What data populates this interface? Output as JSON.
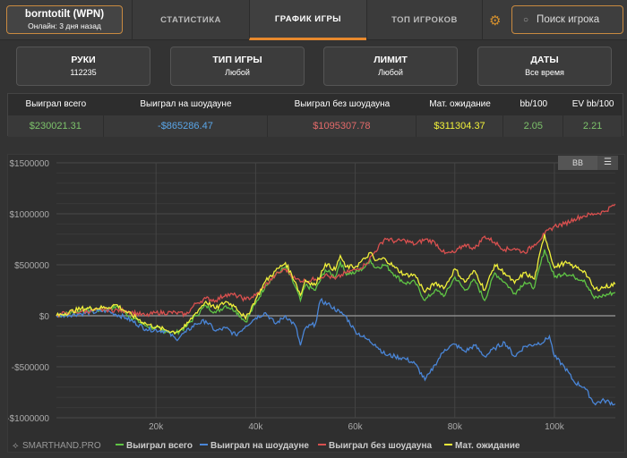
{
  "header": {
    "player_name": "borntotilt (WPN)",
    "player_status": "Онлайн: 3 дня назад",
    "tabs": [
      "СТАТИСТИКА",
      "ГРАФИК ИГРЫ",
      "ТОП ИГРОКОВ"
    ],
    "active_tab": 1,
    "search_placeholder": "Поиск игрока"
  },
  "filters": [
    {
      "label": "РУКИ",
      "value": "112235"
    },
    {
      "label": "ТИП ИГРЫ",
      "value": "Любой"
    },
    {
      "label": "ЛИМИТ",
      "value": "Любой"
    },
    {
      "label": "ДАТЫ",
      "value": "Все время"
    }
  ],
  "stats": {
    "headers": [
      "Выиграл всего",
      "Выиграл на шоудауне",
      "Выиграл без шоудауна",
      "Мат. ожидание",
      "bb/100",
      "EV bb/100"
    ],
    "values": [
      "$230021.31",
      "-$865286.47",
      "$1095307.78",
      "$311304.37",
      "2.05",
      "2.21"
    ],
    "colors": [
      "#7dc36b",
      "#5aa6e8",
      "#e36a6a",
      "#f2f23a",
      "#7dc36b",
      "#7dc36b"
    ]
  },
  "chart_controls": {
    "bb_label": "BB",
    "menu_icon": "hamburger-icon"
  },
  "brand": "SMARTHAND.PRO",
  "chart_data": {
    "type": "line",
    "xlim": [
      0,
      112235
    ],
    "ylim": [
      -1000000,
      1500000
    ],
    "x_ticks": [
      20000,
      40000,
      60000,
      80000,
      100000
    ],
    "x_tick_labels": [
      "20k",
      "40k",
      "60k",
      "80k",
      "100k"
    ],
    "y_ticks": [
      1500000,
      1000000,
      500000,
      0,
      -500000,
      -1000000
    ],
    "y_tick_labels": [
      "$1500000",
      "$1000000",
      "$500000",
      "$0",
      "-$500000",
      "-$1000000"
    ],
    "legend_position": "bottom",
    "series": [
      {
        "name": "Выиграл всего",
        "color": "#5fc444",
        "x_k": [
          0,
          5,
          10,
          12,
          14,
          18,
          22,
          24,
          26,
          28,
          30,
          32,
          34,
          36,
          38,
          40,
          42,
          44,
          46,
          48,
          49,
          50,
          52,
          54,
          56,
          57,
          58,
          60,
          62,
          63,
          64,
          66,
          68,
          70,
          72,
          74,
          76,
          78,
          80,
          82,
          84,
          86,
          88,
          90,
          92,
          94,
          96,
          98,
          100,
          102,
          104,
          106,
          108,
          110,
          112.2
        ],
        "y_k": [
          0,
          50,
          60,
          90,
          20,
          -100,
          -150,
          -170,
          -110,
          0,
          100,
          30,
          100,
          50,
          -60,
          120,
          300,
          400,
          480,
          280,
          150,
          300,
          250,
          450,
          380,
          530,
          420,
          420,
          480,
          550,
          470,
          500,
          400,
          320,
          330,
          150,
          250,
          200,
          380,
          250,
          350,
          150,
          420,
          330,
          220,
          330,
          280,
          650,
          380,
          420,
          380,
          350,
          170,
          200,
          230
        ]
      },
      {
        "name": "Выиграл на шоудауне",
        "color": "#4a86d8",
        "x_k": [
          0,
          5,
          10,
          14,
          18,
          22,
          24,
          26,
          28,
          30,
          32,
          34,
          36,
          38,
          40,
          42,
          44,
          46,
          48,
          49,
          50,
          52,
          53,
          55,
          57,
          58,
          60,
          62,
          64,
          66,
          68,
          70,
          72,
          74,
          75,
          76,
          78,
          80,
          82,
          84,
          86,
          88,
          90,
          92,
          94,
          96,
          98,
          99,
          100,
          102,
          104,
          106,
          108,
          110,
          112.2
        ],
        "y_k": [
          0,
          20,
          50,
          -20,
          -130,
          -150,
          -230,
          -160,
          -80,
          -50,
          -150,
          -120,
          -190,
          -100,
          -20,
          30,
          -80,
          0,
          -100,
          -290,
          -120,
          -80,
          150,
          100,
          30,
          0,
          -150,
          -220,
          -280,
          -380,
          -400,
          -420,
          -470,
          -630,
          -560,
          -480,
          -330,
          -280,
          -350,
          -290,
          -400,
          -320,
          -260,
          -400,
          -300,
          -280,
          -250,
          -200,
          -400,
          -500,
          -650,
          -700,
          -860,
          -830,
          -865
        ]
      },
      {
        "name": "Выиграл без шоудауна",
        "color": "#d9504f",
        "x_k": [
          0,
          2,
          5,
          10,
          14,
          18,
          20,
          24,
          26,
          28,
          30,
          32,
          34,
          36,
          38,
          40,
          44,
          46,
          48,
          50,
          52,
          54,
          56,
          58,
          60,
          62,
          64,
          66,
          68,
          70,
          72,
          74,
          76,
          78,
          80,
          82,
          84,
          86,
          88,
          90,
          92,
          94,
          96,
          98,
          100,
          102,
          104,
          106,
          108,
          110,
          112.2
        ],
        "y_k": [
          0,
          30,
          40,
          60,
          50,
          0,
          30,
          30,
          10,
          120,
          170,
          150,
          210,
          200,
          160,
          200,
          400,
          460,
          360,
          340,
          360,
          400,
          360,
          420,
          450,
          500,
          630,
          760,
          730,
          740,
          700,
          750,
          720,
          610,
          620,
          700,
          660,
          780,
          720,
          650,
          660,
          620,
          700,
          800,
          880,
          900,
          950,
          980,
          1000,
          1020,
          1095
        ]
      },
      {
        "name": "Мат. ожидание",
        "color": "#f0f03a",
        "x_k": [
          0,
          5,
          10,
          12,
          14,
          18,
          22,
          24,
          26,
          28,
          30,
          32,
          34,
          36,
          38,
          40,
          42,
          44,
          46,
          48,
          49,
          50,
          52,
          54,
          56,
          57,
          58,
          60,
          62,
          63,
          64,
          66,
          68,
          70,
          72,
          74,
          76,
          78,
          80,
          82,
          84,
          86,
          88,
          90,
          92,
          94,
          96,
          98,
          100,
          102,
          104,
          106,
          108,
          110,
          112.2
        ],
        "y_k": [
          0,
          70,
          80,
          110,
          40,
          -80,
          -140,
          -160,
          -100,
          30,
          140,
          70,
          140,
          90,
          -30,
          160,
          340,
          440,
          520,
          330,
          200,
          350,
          300,
          510,
          450,
          590,
          480,
          480,
          560,
          620,
          540,
          560,
          470,
          400,
          400,
          230,
          320,
          280,
          460,
          330,
          440,
          250,
          500,
          420,
          320,
          420,
          360,
          800,
          470,
          520,
          480,
          440,
          260,
          280,
          311
        ]
      }
    ]
  }
}
